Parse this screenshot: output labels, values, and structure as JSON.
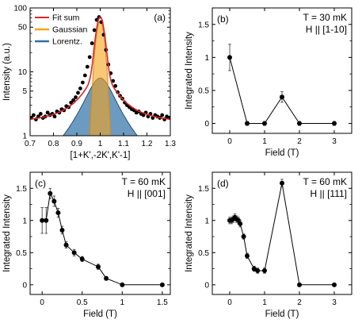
{
  "chart_data": [
    {
      "panel_label": "(a)",
      "type": "line",
      "scale": "log",
      "xlabel": "[1+K',-2K',K'-1]",
      "ylabel": "Intensity (a.u.)",
      "xlim": [
        0.7,
        1.3
      ],
      "ylim": [
        1,
        100
      ],
      "xticks": [
        0.7,
        0.8,
        0.9,
        1.0,
        1.1,
        1.2,
        1.3
      ],
      "xtick_labels": [
        "0.7",
        "0.8",
        "0.9",
        "1",
        "1.1",
        "1.2",
        "1.3"
      ],
      "yticks": [
        1,
        5,
        10,
        50,
        100
      ],
      "ytick_labels": [
        "1",
        "5",
        "10",
        "50",
        "100"
      ],
      "legend_position": "top-left",
      "legend": [
        {
          "label": "Fit sum",
          "color": "#d62728",
          "kind": "line"
        },
        {
          "label": "Gaussian",
          "color": "#f5a31a",
          "kind": "fill"
        },
        {
          "label": "Lorentz.",
          "color": "#2f6fa6",
          "kind": "fill"
        }
      ],
      "model": {
        "background": 1.5,
        "gaussian_amp": 63,
        "gaussian_sigma": 0.0155,
        "lorentz_amp": 8,
        "lorentz_gamma": 0.06,
        "center": 1.0
      },
      "points": {
        "x": [
          0.705,
          0.715,
          0.725,
          0.735,
          0.745,
          0.755,
          0.765,
          0.775,
          0.785,
          0.795,
          0.805,
          0.815,
          0.825,
          0.835,
          0.845,
          0.855,
          0.865,
          0.875,
          0.885,
          0.895,
          0.905,
          0.915,
          0.925,
          0.935,
          0.945,
          0.955,
          0.965,
          0.975,
          0.985,
          0.995,
          1.005,
          1.015,
          1.025,
          1.035,
          1.045,
          1.055,
          1.065,
          1.075,
          1.085,
          1.095,
          1.105,
          1.115,
          1.125,
          1.135,
          1.145,
          1.155,
          1.165,
          1.175,
          1.185,
          1.195,
          1.205,
          1.215,
          1.225,
          1.235,
          1.245,
          1.255,
          1.265,
          1.275,
          1.285,
          1.295
        ],
        "y": [
          1.9,
          2.1,
          1.8,
          2.0,
          2.2,
          1.9,
          2.0,
          2.3,
          2.1,
          2.2,
          2.0,
          2.4,
          2.3,
          2.6,
          2.5,
          2.9,
          2.8,
          3.3,
          3.6,
          4.0,
          4.7,
          5.5,
          6.8,
          8.8,
          12,
          17,
          28,
          45,
          65,
          72,
          60,
          38,
          22,
          13,
          9.5,
          7.2,
          6.0,
          4.8,
          4.2,
          3.8,
          3.3,
          3.0,
          2.8,
          2.6,
          2.5,
          2.3,
          2.4,
          2.2,
          2.1,
          2.3,
          2.0,
          2.2,
          1.9,
          2.1,
          2.0,
          1.9,
          2.1,
          1.8,
          2.0,
          1.9
        ]
      }
    },
    {
      "panel_label": "(b)",
      "type": "line",
      "annotation": [
        "T = 30 mK",
        "H || [1-10]"
      ],
      "xlabel": "Field (T)",
      "ylabel": "Integrated Intensity",
      "xlim": [
        -0.5,
        3.5
      ],
      "ylim": [
        -0.15,
        1.75
      ],
      "xticks": [
        0,
        1,
        2,
        3
      ],
      "xtick_labels": [
        "0",
        "1",
        "2",
        "3"
      ],
      "yticks": [
        0,
        0.5,
        1,
        1.5
      ],
      "ytick_labels": [
        "0",
        "0.5",
        "1",
        "1.5"
      ],
      "x": [
        0,
        0.5,
        1,
        1.5,
        2,
        3
      ],
      "y": [
        1.0,
        0.0,
        0.0,
        0.4,
        0.0,
        0.0
      ],
      "err": [
        0.2,
        0.03,
        0.03,
        0.08,
        0.03,
        0.03
      ]
    },
    {
      "panel_label": "(c)",
      "type": "line",
      "annotation": [
        "T = 60 mK",
        "H || [001]"
      ],
      "xlabel": "Field (T)",
      "ylabel": "Integrated Intensity",
      "xlim": [
        -0.15,
        1.6
      ],
      "ylim": [
        -0.15,
        1.75
      ],
      "xticks": [
        0,
        0.5,
        1,
        1.5
      ],
      "xtick_labels": [
        "0",
        "0.5",
        "1",
        "1.5"
      ],
      "yticks": [
        0,
        0.5,
        1,
        1.5
      ],
      "ytick_labels": [
        "0",
        "0.5",
        "1",
        "1.5"
      ],
      "x": [
        0,
        0.05,
        0.1,
        0.15,
        0.2,
        0.25,
        0.3,
        0.4,
        0.5,
        0.7,
        0.8,
        1.0,
        1.5
      ],
      "y": [
        1.0,
        1.0,
        1.42,
        1.3,
        1.12,
        0.85,
        0.62,
        0.5,
        0.4,
        0.28,
        0.1,
        0.0,
        0.0
      ],
      "err": [
        0.2,
        0.2,
        0.08,
        0.08,
        0.07,
        0.06,
        0.05,
        0.05,
        0.04,
        0.04,
        0.03,
        0.02,
        0.02
      ]
    },
    {
      "panel_label": "(d)",
      "type": "line",
      "annotation": [
        "T = 60 mK",
        "H || [111]"
      ],
      "xlabel": "Field (T)",
      "ylabel": "Integrated Intensity",
      "xlim": [
        -0.5,
        3.5
      ],
      "ylim": [
        -0.15,
        1.75
      ],
      "xticks": [
        0,
        1,
        2,
        3
      ],
      "xtick_labels": [
        "0",
        "1",
        "2",
        "3"
      ],
      "yticks": [
        0,
        0.5,
        1,
        1.5
      ],
      "ytick_labels": [
        "0",
        "0.5",
        "1",
        "1.5"
      ],
      "x": [
        0,
        0.05,
        0.1,
        0.15,
        0.2,
        0.25,
        0.3,
        0.4,
        0.5,
        0.7,
        0.8,
        1.0,
        1.5,
        2.0,
        3.0
      ],
      "y": [
        1.0,
        1.0,
        1.02,
        1.05,
        1.02,
        1.0,
        0.95,
        0.75,
        0.45,
        0.25,
        0.22,
        0.22,
        1.58,
        0.0,
        0.0
      ],
      "err": [
        0.05,
        0.05,
        0.05,
        0.05,
        0.05,
        0.05,
        0.05,
        0.04,
        0.04,
        0.04,
        0.04,
        0.04,
        0.06,
        0.02,
        0.02
      ]
    }
  ]
}
